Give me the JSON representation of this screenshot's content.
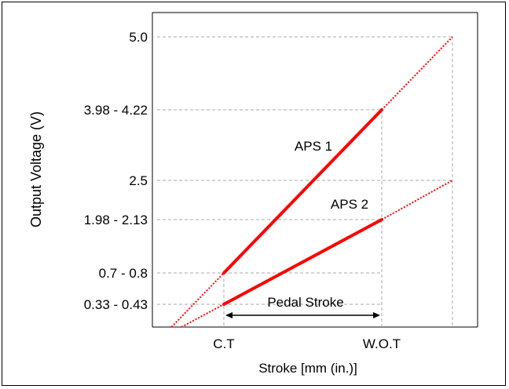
{
  "chart_data": {
    "type": "line",
    "xlabel": "Stroke [mm (in.)]",
    "ylabel": "Output Voltage (V)",
    "x_ticks": [
      "C.T",
      "W.O.T"
    ],
    "y_ticks": [
      {
        "label": "5.0",
        "value": 5.0
      },
      {
        "label": "3.98 - 4.22",
        "value": 4.1
      },
      {
        "label": "2.5",
        "value": 2.5
      },
      {
        "label": "1.98 - 2.13",
        "value": 2.05
      },
      {
        "label": "0.7 - 0.8",
        "value": 0.75
      },
      {
        "label": "0.33 - 0.43",
        "value": 0.38
      }
    ],
    "ylim": [
      0,
      5.0
    ],
    "grid": true,
    "series": [
      {
        "name": "APS 1",
        "color": "#ff0000",
        "solid": {
          "x": [
            "C.T",
            "W.O.T"
          ],
          "y": [
            0.75,
            4.1
          ]
        },
        "extension_end": 5.0
      },
      {
        "name": "APS 2",
        "color": "#ff0000",
        "solid": {
          "x": [
            "C.T",
            "W.O.T"
          ],
          "y": [
            0.38,
            2.05
          ]
        },
        "extension_end": 2.5
      }
    ],
    "annotation": {
      "text": "Pedal Stroke",
      "from": "C.T",
      "to": "W.O.T"
    }
  }
}
